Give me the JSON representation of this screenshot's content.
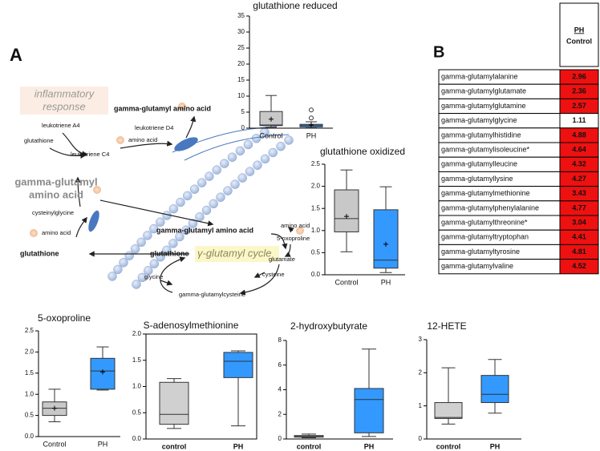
{
  "panels": {
    "a": "A",
    "b": "B"
  },
  "diagram": {
    "labels": [
      "inflammatory",
      "response",
      "gamma-glutamyl amino acid",
      "leukotriene D4",
      "amino acid",
      "leukotriene A4",
      "glutathione",
      "leukotriene C4",
      "gamma-glutamyl",
      "amino acid",
      "cysteinylglycine",
      "amino acid",
      "glutathione",
      "gamma-glutamyl amino acid",
      "glutathione",
      "γ-glutamyl cycle",
      "amino acid",
      "5-oxoproline",
      "glutamate",
      "glycine",
      "cysteine",
      "gamma-glutamylcysteine"
    ]
  },
  "table": {
    "header": [
      "PH",
      "Control"
    ],
    "rows": [
      {
        "name": "gamma-glutamylalanine",
        "value": 2.96,
        "color": "#ee1111"
      },
      {
        "name": "gamma-glutamylglutamate",
        "value": 2.36,
        "color": "#ee1111"
      },
      {
        "name": "gamma-glutamylglutamine",
        "value": 2.57,
        "color": "#ee1111"
      },
      {
        "name": "gamma-glutamylglycine",
        "value": 1.11,
        "color": "#ffffff"
      },
      {
        "name": "gamma-glutamylhistidine",
        "value": 4.88,
        "color": "#ee1111"
      },
      {
        "name": "gamma-glutamylisoleucine*",
        "value": 4.64,
        "color": "#ee1111"
      },
      {
        "name": "gamma-glutamylleucine",
        "value": 4.32,
        "color": "#ee1111"
      },
      {
        "name": "gamma-glutamyllysine",
        "value": 4.27,
        "color": "#ee1111"
      },
      {
        "name": "gamma-glutamylmethionine",
        "value": 3.43,
        "color": "#ee1111"
      },
      {
        "name": "gamma-glutamylphenylalanine",
        "value": 4.77,
        "color": "#ee1111"
      },
      {
        "name": "gamma-glutamylthreonine*",
        "value": 3.04,
        "color": "#ee1111"
      },
      {
        "name": "gamma-glutamyltryptophan",
        "value": 4.41,
        "color": "#ee1111"
      },
      {
        "name": "gamma-glutamyltyrosine",
        "value": 4.81,
        "color": "#ee1111"
      },
      {
        "name": "gamma-glutamylvaline",
        "value": 4.52,
        "color": "#ee1111"
      }
    ]
  },
  "chart_data": [
    {
      "type": "box",
      "title": "glutathione reduced",
      "categories": [
        "Control",
        "PH"
      ],
      "ylim": [
        0,
        35
      ],
      "yticks": [
        0,
        5,
        10,
        15,
        20,
        25,
        30,
        35
      ],
      "boxes": [
        {
          "min": 0.3,
          "q1": 0.8,
          "median": 1.0,
          "q3": 5.2,
          "max": 10.2,
          "mean": 2.8,
          "color": "#c8c8c8"
        },
        {
          "min": 0.1,
          "q1": 0.4,
          "median": 0.8,
          "q3": 1.2,
          "max": 2.0,
          "mean": 1.0,
          "outliers": [
            3.2,
            5.7
          ],
          "color": "#3399ff"
        }
      ]
    },
    {
      "type": "box",
      "title": "glutathione oxidized",
      "categories": [
        "Control",
        "PH"
      ],
      "ylim": [
        0,
        2.5
      ],
      "yticks": [
        {
          "value": 0,
          "label": "0.0"
        },
        {
          "value": 0.5,
          "label": "0.5"
        },
        {
          "value": 1,
          "label": "1.0"
        },
        {
          "value": 1.5,
          "label": "1.5"
        },
        {
          "value": 2,
          "label": "2.0"
        },
        {
          "value": 2.5,
          "label": "2.5"
        }
      ],
      "boxes": [
        {
          "min": 0.52,
          "q1": 0.97,
          "median": 1.27,
          "q3": 1.92,
          "max": 2.37,
          "mean": 1.32,
          "color": "#c8c8c8"
        },
        {
          "min": 0.05,
          "q1": 0.15,
          "median": 0.33,
          "q3": 1.47,
          "max": 1.99,
          "mean": 0.69,
          "color": "#3399ff"
        }
      ]
    },
    {
      "type": "box",
      "title": "5-oxoproline",
      "categories": [
        "Control",
        "PH"
      ],
      "ylim": [
        0,
        2.5
      ],
      "yticks": [
        {
          "value": 0,
          "label": "0.0"
        },
        {
          "value": 0.5,
          "label": "0.5"
        },
        {
          "value": 1,
          "label": "1.0"
        },
        {
          "value": 1.5,
          "label": "1.5"
        },
        {
          "value": 2,
          "label": "2.0"
        },
        {
          "value": 2.5,
          "label": "2.5"
        }
      ],
      "boxes": [
        {
          "min": 0.35,
          "q1": 0.5,
          "median": 0.67,
          "q3": 0.82,
          "max": 1.12,
          "mean": 0.67,
          "color": "#c8c8c8"
        },
        {
          "min": 1.1,
          "q1": 1.12,
          "median": 1.55,
          "q3": 1.85,
          "max": 2.12,
          "mean": 1.53,
          "color": "#3399ff"
        }
      ]
    },
    {
      "type": "box",
      "title": "S-adenosylmethionine",
      "categories": [
        "control",
        "PH"
      ],
      "ylim": [
        0,
        2
      ],
      "yticks": [
        {
          "value": 0,
          "label": "0.0"
        },
        {
          "value": 0.5,
          "label": "0.5"
        },
        {
          "value": 1,
          "label": "1.0"
        },
        {
          "value": 1.5,
          "label": "1.5"
        },
        {
          "value": 2,
          "label": "2.0"
        }
      ],
      "frame": true,
      "boxes": [
        {
          "min": 0.2,
          "q1": 0.28,
          "median": 0.47,
          "q3": 1.08,
          "max": 1.15,
          "color": "#d0d0d0"
        },
        {
          "min": 0.25,
          "q1": 1.17,
          "median": 1.48,
          "q3": 1.65,
          "max": 1.68,
          "color": "#3399ff"
        }
      ]
    },
    {
      "type": "box",
      "title": "2-hydroxybutyrate",
      "categories": [
        "control",
        "PH"
      ],
      "ylim": [
        0,
        8
      ],
      "yticks": [
        0,
        2,
        4,
        6,
        8
      ],
      "boxes": [
        {
          "min": 0.1,
          "q1": 0.15,
          "median": 0.2,
          "q3": 0.28,
          "max": 0.4,
          "color": "#d0d0d0"
        },
        {
          "min": 0.2,
          "q1": 0.5,
          "median": 3.2,
          "q3": 4.1,
          "max": 7.3,
          "color": "#3399ff"
        }
      ]
    },
    {
      "type": "box",
      "title": "12-HETE",
      "categories": [
        "control",
        "PH"
      ],
      "ylim": [
        0,
        3
      ],
      "yticks": [
        0,
        1,
        2,
        3
      ],
      "boxes": [
        {
          "min": 0.45,
          "q1": 0.62,
          "median": 0.65,
          "q3": 1.1,
          "max": 2.15,
          "color": "#d0d0d0"
        },
        {
          "min": 0.78,
          "q1": 1.1,
          "median": 1.35,
          "q3": 1.92,
          "max": 2.4,
          "color": "#3399ff"
        }
      ]
    }
  ]
}
